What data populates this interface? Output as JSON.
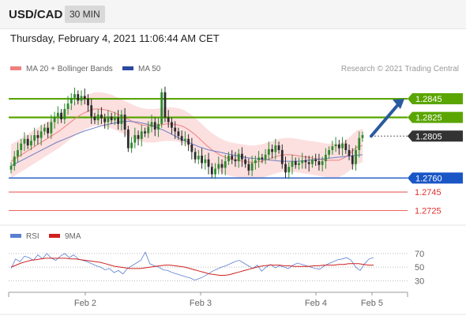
{
  "header": {
    "symbol": "USD/CAD",
    "timeframe": "30 MIN"
  },
  "datetime": "Thursday, February 4, 2021 11:06:44 AM CET",
  "legend": {
    "ma20_bb": "MA 20 + Bollinger Bands",
    "ma50": "MA 50",
    "credit": "Research © 2021 Trading Central"
  },
  "colors": {
    "green": "#5aa500",
    "blue": "#1a56c6",
    "red": "#e03030",
    "dark": "#333333",
    "bb_fill": "#fbd9d9",
    "ma20": "#f08080",
    "ma50": "#6a7fc4",
    "arrow": "#2a5aa0",
    "candle_up": "#2d8a2d",
    "candle_down": "#2b2b2b",
    "rsi": "#5b7fd0",
    "rsi_ma": "#d02020"
  },
  "chart_data": {
    "type": "candlestick",
    "price_ylim": [
      1.2712,
      1.2862
    ],
    "levels": [
      {
        "value": 1.2845,
        "label": "1.2845",
        "style": "resistance"
      },
      {
        "value": 1.2825,
        "label": "1.2825",
        "style": "resistance"
      },
      {
        "value": 1.2805,
        "label": "1.2805",
        "style": "current"
      },
      {
        "value": 1.276,
        "label": "1.2760",
        "style": "pivot"
      },
      {
        "value": 1.2745,
        "label": "1.2745",
        "style": "support"
      },
      {
        "value": 1.2725,
        "label": "1.2725",
        "style": "support"
      }
    ],
    "closes": [
      1.2773,
      1.2783,
      1.279,
      1.2797,
      1.2802,
      1.2795,
      1.28,
      1.2806,
      1.2803,
      1.281,
      1.2814,
      1.2808,
      1.282,
      1.2826,
      1.283,
      1.2823,
      1.2834,
      1.284,
      1.2846,
      1.285,
      1.2843,
      1.2848,
      1.2845,
      1.2838,
      1.2826,
      1.2822,
      1.2828,
      1.2824,
      1.282,
      1.2826,
      1.2822,
      1.2825,
      1.2818,
      1.2828,
      1.2812,
      1.2792,
      1.2798,
      1.2806,
      1.2802,
      1.281,
      1.2808,
      1.2815,
      1.282,
      1.2812,
      1.2818,
      1.2852,
      1.2825,
      1.282,
      1.2814,
      1.281,
      1.2805,
      1.28,
      1.2802,
      1.2796,
      1.2788,
      1.278,
      1.2784,
      1.2776,
      1.278,
      1.2772,
      1.2764,
      1.277,
      1.2775,
      1.2771,
      1.2778,
      1.2784,
      1.278,
      1.2778,
      1.2786,
      1.278,
      1.2775,
      1.2768,
      1.2776,
      1.2779,
      1.2782,
      1.278,
      1.2785,
      1.2791,
      1.2788,
      1.2795,
      1.279,
      1.2775,
      1.2766,
      1.2772,
      1.2778,
      1.2774,
      1.2776,
      1.2779,
      1.2777,
      1.2775,
      1.278,
      1.2778,
      1.2774,
      1.2778,
      1.2785,
      1.279,
      1.2794,
      1.2796,
      1.2792,
      1.2797,
      1.279,
      1.2784,
      1.2775,
      1.279,
      1.2803,
      1.2806
    ],
    "ma20": [
      1.2778,
      1.2782,
      1.2786,
      1.279,
      1.2794,
      1.2798,
      1.2802,
      1.2806,
      1.281,
      1.2815,
      1.282,
      1.2825,
      1.2829,
      1.2832,
      1.2834,
      1.2834,
      1.2833,
      1.2831,
      1.2828,
      1.2825,
      1.2822,
      1.2819,
      1.2817,
      1.2816,
      1.2816,
      1.2817,
      1.2818,
      1.2818,
      1.2817,
      1.2815,
      1.2811,
      1.2806,
      1.28,
      1.2794,
      1.2789,
      1.2785,
      1.2782,
      1.278,
      1.2779,
      1.2778,
      1.2777,
      1.2777,
      1.2778,
      1.278,
      1.2782,
      1.2784,
      1.2785,
      1.2785,
      1.2784,
      1.2783,
      1.2782,
      1.2781,
      1.278,
      1.2779,
      1.2779,
      1.2779,
      1.2782,
      1.2787,
      1.2793,
      1.2795
    ],
    "ma50": [
      1.2773,
      1.2778,
      1.2783,
      1.2788,
      1.2793,
      1.2798,
      1.2802,
      1.2806,
      1.281,
      1.2813,
      1.2816,
      1.2818,
      1.282,
      1.2821,
      1.282,
      1.2818,
      1.2815,
      1.2811,
      1.2806,
      1.2801,
      1.2797,
      1.2793,
      1.279,
      1.2788,
      1.2786,
      1.2784,
      1.2782,
      1.2781,
      1.278,
      1.2779,
      1.2778,
      1.2778,
      1.2778,
      1.2779,
      1.278,
      1.2781,
      1.2782,
      1.2783,
      1.2784,
      1.2785
    ],
    "rsi_ylim": [
      20,
      78
    ],
    "rsi_ticks": [
      70,
      50,
      30
    ],
    "rsi": [
      48,
      62,
      58,
      66,
      64,
      60,
      68,
      62,
      70,
      63,
      60,
      66,
      70,
      64,
      68,
      62,
      60,
      58,
      55,
      52,
      50,
      46,
      48,
      42,
      45,
      40,
      48,
      52,
      56,
      60,
      72,
      55,
      52,
      50,
      46,
      45,
      42,
      40,
      38,
      36,
      34,
      31,
      33,
      36,
      40,
      44,
      47,
      50,
      52,
      55,
      58,
      60,
      56,
      52,
      48,
      53,
      44,
      50,
      54,
      49,
      52,
      50,
      48,
      53,
      56,
      54,
      52,
      50,
      48,
      47,
      52,
      55,
      58,
      61,
      62,
      64,
      60,
      50,
      45,
      55,
      62,
      64
    ],
    "rsi_ma": [
      50,
      53,
      56,
      58,
      60,
      61,
      62,
      63,
      63,
      63,
      63,
      63,
      62,
      62,
      61,
      60,
      59,
      58,
      57,
      55,
      53,
      51,
      50,
      49,
      48,
      48,
      48,
      49,
      50,
      51,
      52,
      53,
      53,
      52,
      51,
      50,
      48,
      46,
      44,
      42,
      40,
      39,
      38,
      38,
      39,
      41,
      43,
      45,
      47,
      49,
      51,
      52,
      53,
      53,
      53,
      52,
      52,
      51,
      51,
      51,
      51,
      52,
      52,
      53,
      53,
      53,
      54,
      54,
      55,
      55,
      55,
      54,
      53,
      53
    ],
    "x_tick_labels": [
      "Feb 2",
      "Feb 3",
      "Feb 4",
      "Feb 5"
    ],
    "rsi_legend": [
      "RSI",
      "9MA"
    ],
    "forecast_arrow": {
      "from": 1.2805,
      "to": 1.2845
    }
  }
}
